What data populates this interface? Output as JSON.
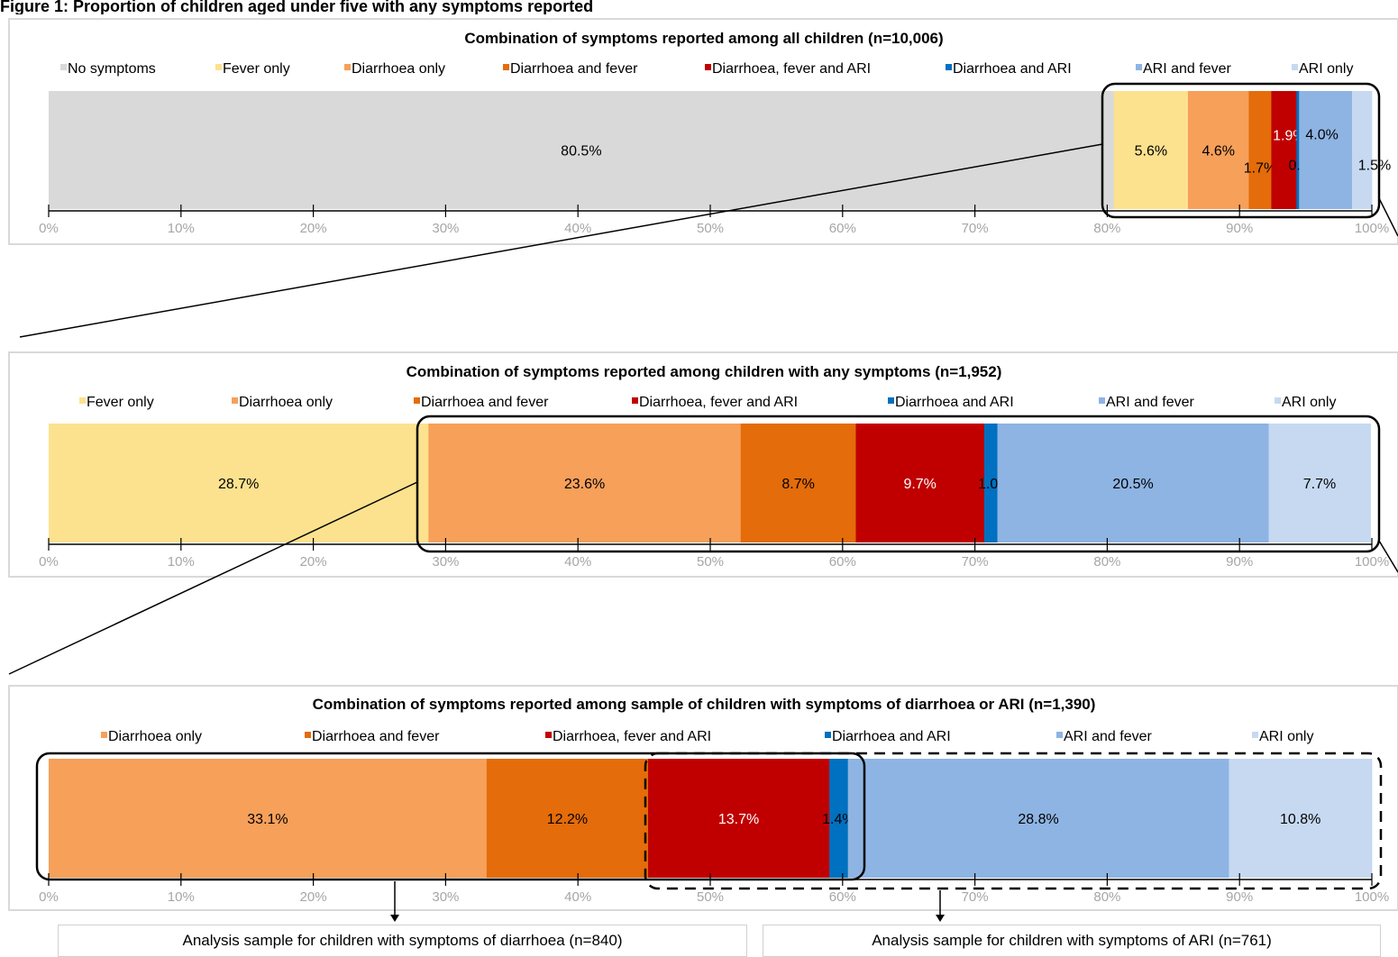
{
  "page_title": "Figure 1: Proportion of children aged under five with any symptoms reported",
  "colors": {
    "No symptoms": "#d9d9d9",
    "Fever only": "#fce28e",
    "Diarrhoea only": "#f6a05a",
    "Diarrhoea and fever": "#e46c0a",
    "Diarrhoea, fever and ARI": "#c00000",
    "Diarrhoea and ARI": "#0070c0",
    "ARI and fever": "#8eb4e3",
    "ARI only": "#c6d9f1"
  },
  "chart_data": [
    {
      "type": "bar",
      "orientation": "horizontal-stacked",
      "title": "Combination of symptoms reported among all children (n=10,006)",
      "legend": [
        "No symptoms",
        "Fever only",
        "Diarrhoea only",
        "Diarrhoea and fever",
        "Diarrhoea, fever and ARI",
        "Diarrhoea and ARI",
        "ARI and fever",
        "ARI only"
      ],
      "series": [
        {
          "name": "No symptoms",
          "value": 80.5,
          "label": "80.5%"
        },
        {
          "name": "Fever only",
          "value": 5.6,
          "label": "5.6%"
        },
        {
          "name": "Diarrhoea only",
          "value": 4.6,
          "label": "4.6%"
        },
        {
          "name": "Diarrhoea and fever",
          "value": 1.7,
          "label": "1.7%"
        },
        {
          "name": "Diarrhoea, fever and ARI",
          "value": 1.9,
          "label": "1.9%"
        },
        {
          "name": "Diarrhoea and ARI",
          "value": 0.2,
          "label": "0.2%"
        },
        {
          "name": "ARI and fever",
          "value": 4.0,
          "label": "4.0%"
        },
        {
          "name": "ARI only",
          "value": 1.5,
          "label": "1.5%"
        }
      ],
      "xlim": [
        0,
        100
      ],
      "ticks": [
        "0%",
        "10%",
        "20%",
        "30%",
        "40%",
        "50%",
        "60%",
        "70%",
        "80%",
        "90%",
        "100%"
      ]
    },
    {
      "type": "bar",
      "orientation": "horizontal-stacked",
      "title": "Combination of symptoms reported among children with any symptoms (n=1,952)",
      "legend": [
        "Fever only",
        "Diarrhoea only",
        "Diarrhoea and fever",
        "Diarrhoea, fever and ARI",
        "Diarrhoea and ARI",
        "ARI and fever",
        "ARI only"
      ],
      "series": [
        {
          "name": "Fever only",
          "value": 28.7,
          "label": "28.7%"
        },
        {
          "name": "Diarrhoea only",
          "value": 23.6,
          "label": "23.6%"
        },
        {
          "name": "Diarrhoea and fever",
          "value": 8.7,
          "label": "8.7%"
        },
        {
          "name": "Diarrhoea, fever and ARI",
          "value": 9.7,
          "label": "9.7%"
        },
        {
          "name": "Diarrhoea and ARI",
          "value": 1.0,
          "label": "1.0%"
        },
        {
          "name": "ARI and fever",
          "value": 20.5,
          "label": "20.5%"
        },
        {
          "name": "ARI only",
          "value": 7.7,
          "label": "7.7%"
        }
      ],
      "xlim": [
        0,
        100
      ],
      "ticks": [
        "0%",
        "10%",
        "20%",
        "30%",
        "40%",
        "50%",
        "60%",
        "70%",
        "80%",
        "90%",
        "100%"
      ]
    },
    {
      "type": "bar",
      "orientation": "horizontal-stacked",
      "title": "Combination of symptoms reported among sample of children with symptoms of diarrhoea or ARI  (n=1,390)",
      "legend": [
        "Diarrhoea only",
        "Diarrhoea and fever",
        "Diarrhoea, fever and ARI",
        "Diarrhoea and ARI",
        "ARI and fever",
        "ARI only"
      ],
      "series": [
        {
          "name": "Diarrhoea only",
          "value": 33.1,
          "label": "33.1%"
        },
        {
          "name": "Diarrhoea and fever",
          "value": 12.2,
          "label": "12.2%"
        },
        {
          "name": "Diarrhoea, fever and ARI",
          "value": 13.7,
          "label": "13.7%"
        },
        {
          "name": "Diarrhoea and ARI",
          "value": 1.4,
          "label": "1.4%"
        },
        {
          "name": "ARI and fever",
          "value": 28.8,
          "label": "28.8%"
        },
        {
          "name": "ARI only",
          "value": 10.8,
          "label": "10.8%"
        }
      ],
      "xlim": [
        0,
        100
      ],
      "ticks": [
        "0%",
        "10%",
        "20%",
        "30%",
        "40%",
        "50%",
        "60%",
        "70%",
        "80%",
        "90%",
        "100%"
      ]
    }
  ],
  "captions": {
    "diarrhoea": "Analysis sample for children with symptoms of diarrhoea (n=840)",
    "ari": "Analysis sample for children with symptoms of ARI (n=761)"
  }
}
